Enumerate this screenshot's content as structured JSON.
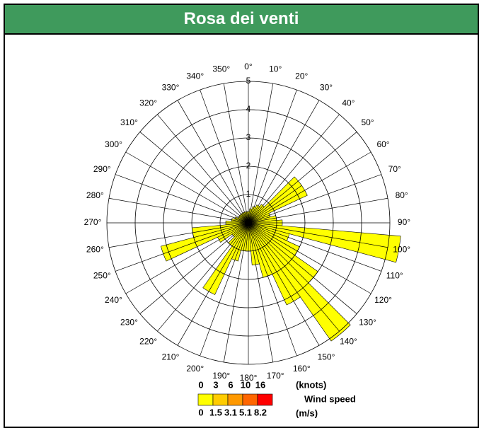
{
  "chart_data": {
    "type": "windrose",
    "title": "Rosa dei venti",
    "categories": [
      "0°",
      "10°",
      "20°",
      "30°",
      "40°",
      "50°",
      "60°",
      "70°",
      "80°",
      "90°",
      "100°",
      "110°",
      "120°",
      "130°",
      "140°",
      "150°",
      "160°",
      "170°",
      "180°",
      "190°",
      "200°",
      "210°",
      "220°",
      "230°",
      "240°",
      "250°",
      "260°",
      "270°",
      "280°",
      "290°",
      "300°",
      "310°",
      "320°",
      "330°",
      "340°",
      "350°"
    ],
    "values": [
      0.4,
      0.5,
      0.6,
      0.7,
      0.8,
      2.3,
      2.3,
      0.8,
      1.0,
      1.2,
      5.4,
      1.5,
      2.0,
      3.0,
      5.1,
      3.2,
      2.0,
      1.5,
      1.0,
      1.0,
      1.4,
      2.8,
      1.0,
      0.7,
      1.2,
      3.2,
      2.0,
      0.8,
      0.6,
      0.5,
      0.4,
      0.4,
      0.4,
      0.4,
      0.4,
      0.4
    ],
    "color": "#ffff00",
    "rlim": [
      0,
      5
    ],
    "rticks": [
      1,
      2,
      3,
      4,
      5
    ],
    "grid": true,
    "legend": {
      "title": "Wind speed",
      "knots_unit": "(knots)",
      "ms_unit": "(m/s)",
      "knots": [
        0,
        3,
        6,
        10,
        16
      ],
      "ms": [
        0,
        1.5,
        3.1,
        5.1,
        8.2
      ],
      "colors": [
        "#ffff00",
        "#ffcc00",
        "#ff9900",
        "#ff6600",
        "#ff0000"
      ]
    }
  }
}
